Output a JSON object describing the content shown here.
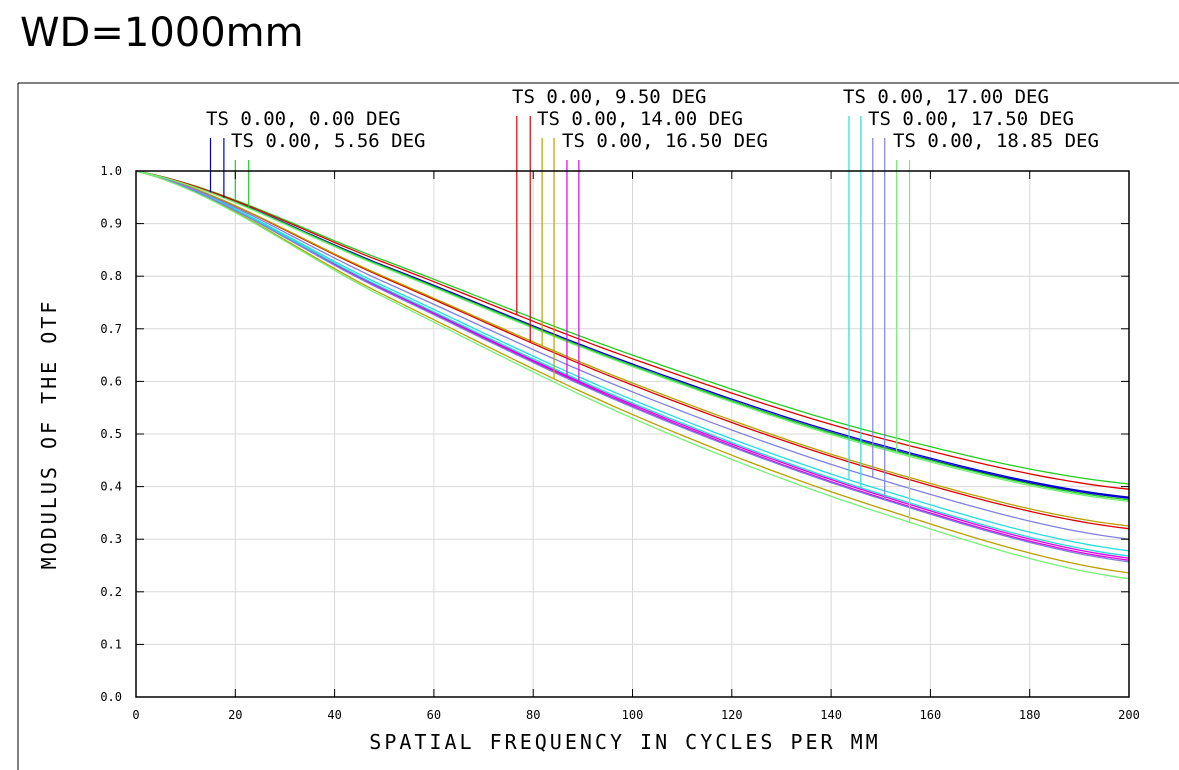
{
  "title": "WD=1000mm",
  "chart_data": {
    "type": "line",
    "xlabel": "SPATIAL FREQUENCY IN CYCLES PER MM",
    "ylabel": "MODULUS OF THE OTF",
    "xlim": [
      0,
      200
    ],
    "ylim": [
      0,
      1
    ],
    "xticks": [
      "0",
      "20",
      "40",
      "60",
      "80",
      "100",
      "120",
      "140",
      "160",
      "180",
      "200"
    ],
    "yticks": [
      "0.0",
      "0.1",
      "0.2",
      "0.3",
      "0.4",
      "0.5",
      "0.6",
      "0.7",
      "0.8",
      "0.9",
      "1.0"
    ],
    "grid": true,
    "x": [
      0,
      50,
      100,
      150,
      200
    ],
    "fields": [
      {
        "label": "TS 0.00, 0.00 DEG",
        "color": "#0000cc",
        "marker_freq": [
          15,
          17.7
        ],
        "series": [
          {
            "name": "T",
            "values": [
              1,
              0.82,
              0.633,
              0.479,
              0.38
            ]
          },
          {
            "name": "S",
            "values": [
              1,
              0.818,
              0.63,
              0.476,
              0.378
            ]
          }
        ]
      },
      {
        "label": "TS 0.00, 5.56 DEG",
        "color": "#22cc22",
        "marker_freq": [
          20,
          22.7
        ],
        "series": [
          {
            "name": "T",
            "values": [
              1,
              0.83,
              0.65,
              0.5,
              0.405
            ]
          },
          {
            "name": "S",
            "values": [
              1,
              0.818,
              0.63,
              0.475,
              0.375
            ]
          }
        ]
      },
      {
        "label": "TS 0.00, 9.50 DEG",
        "color": "#dd0000",
        "marker_freq": [
          76.7,
          79.4
        ],
        "series": [
          {
            "name": "T",
            "values": [
              1,
              0.826,
              0.643,
              0.492,
              0.395
            ]
          },
          {
            "name": "S",
            "values": [
              1,
              0.797,
              0.593,
              0.429,
              0.32
            ]
          }
        ]
      },
      {
        "label": "TS 0.00, 14.00 DEG",
        "color": "#b8a000",
        "marker_freq": [
          81.8,
          84.2
        ],
        "series": [
          {
            "name": "T",
            "values": [
              1,
              0.799,
              0.597,
              0.433,
              0.325
            ]
          },
          {
            "name": "S",
            "values": [
              1,
              0.764,
              0.537,
              0.359,
              0.236
            ]
          }
        ]
      },
      {
        "label": "TS 0.00, 16.50 DEG",
        "color": "#dd00dd",
        "marker_freq": [
          86.8,
          89.2
        ],
        "series": [
          {
            "name": "T",
            "values": [
              1,
              0.775,
              0.556,
              0.383,
              0.264
            ]
          },
          {
            "name": "S",
            "values": [
              1,
              0.774,
              0.553,
              0.379,
              0.26
            ]
          }
        ]
      },
      {
        "label": "TS 0.00, 17.00 DEG",
        "color": "#22dddd",
        "marker_freq": [
          143.6,
          146
        ],
        "series": [
          {
            "name": "T",
            "values": [
              1,
              0.781,
              0.565,
              0.394,
              0.278
            ]
          },
          {
            "name": "S",
            "values": [
              1,
              0.777,
              0.559,
              0.386,
              0.268
            ]
          }
        ]
      },
      {
        "label": "TS 0.00, 17.50 DEG",
        "color": "#8080dd",
        "marker_freq": [
          148.4,
          150.8
        ],
        "series": [
          {
            "name": "T",
            "values": [
              1,
              0.789,
              0.58,
              0.413,
              0.3
            ]
          },
          {
            "name": "S",
            "values": [
              1,
              0.772,
              0.551,
              0.377,
              0.257
            ]
          }
        ]
      },
      {
        "label": "TS 0.00, 18.85 DEG",
        "color": "#77ee77",
        "marker_freq": [
          153.2,
          155.8
        ],
        "series": [
          {
            "name": "T",
            "values": [
              1,
              0.816,
              0.628,
              0.472,
              0.372
            ]
          },
          {
            "name": "S",
            "values": [
              1,
              0.76,
              0.53,
              0.35,
              0.225
            ]
          }
        ]
      }
    ]
  }
}
